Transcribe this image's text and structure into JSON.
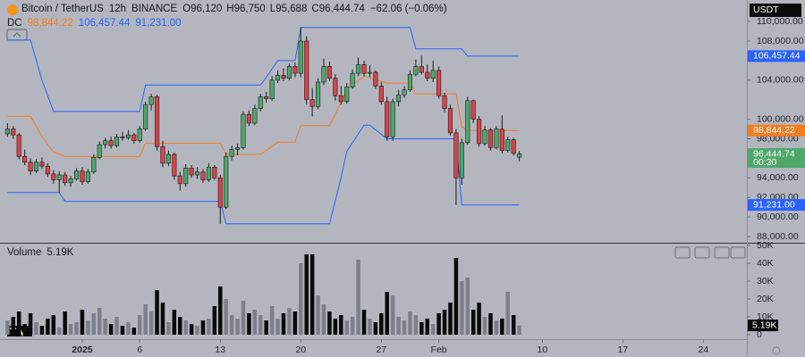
{
  "chart_data": [
    {
      "type": "candlestick",
      "symbol": "Bitcoin / TetherUS",
      "interval": "12h",
      "exchange": "BINANCE",
      "ohlc_legend": [
        {
          "key": "O",
          "value": "96,120"
        },
        {
          "key": "H",
          "value": "96,750"
        },
        {
          "key": "L",
          "value": "95,688"
        },
        {
          "key": "C",
          "value": "96,444.74"
        }
      ],
      "change": "−62.06 (−0.06%)",
      "currency": "USDT",
      "countdown": "00:30",
      "last_close_label": "96,444.74",
      "up_color": "#4fa86a",
      "down_color": "#d8434b",
      "wick_color": "#1b1b1b",
      "x": [
        -6.5,
        -6,
        -5.5,
        -5,
        -4.5,
        -4,
        -3.5,
        -3,
        -2.5,
        -2,
        -1.5,
        -1,
        -0.5,
        0,
        0.5,
        1,
        1.5,
        2,
        2.5,
        3,
        3.5,
        4,
        4.5,
        5,
        5.5,
        6,
        6.5,
        7,
        7.5,
        8,
        8.5,
        9,
        9.5,
        10,
        10.5,
        11,
        11.5,
        12,
        12.5,
        13,
        13.5,
        14,
        14.5,
        15,
        15.5,
        16,
        16.5,
        17,
        17.5,
        18,
        18.5,
        19,
        19.5,
        20,
        20.5,
        21,
        21.5,
        22,
        22.5,
        23,
        23.5,
        24,
        24.5,
        25,
        25.5,
        26,
        26.5,
        27,
        27.5,
        28,
        28.5,
        29,
        29.5,
        30,
        30.5,
        31,
        31.5,
        32,
        32.5,
        33,
        33.5,
        34,
        34.5,
        35,
        35.5,
        36,
        36.5,
        37,
        37.5,
        38
      ],
      "open": [
        98500,
        99000,
        98400,
        96200,
        95600,
        94700,
        95600,
        95200,
        94400,
        93800,
        94300,
        93500,
        93900,
        94700,
        93600,
        94600,
        96100,
        97400,
        97800,
        97300,
        98200,
        98100,
        98400,
        97800,
        99000,
        101500,
        102300,
        97200,
        95500,
        96400,
        94200,
        93400,
        95000,
        94300,
        94600,
        93800,
        95100,
        94000,
        91000,
        96200,
        96900,
        97100,
        100500,
        99600,
        101100,
        102300,
        102100,
        104000,
        104500,
        104200,
        105400,
        104700,
        108000,
        102000,
        101300,
        103800,
        105400,
        104200,
        102400,
        101800,
        103300,
        104700,
        105600,
        104700,
        104800,
        103400,
        101800,
        98200,
        101800,
        102500,
        103000,
        104600,
        105400,
        104800,
        104200,
        105000,
        102400,
        101100,
        98600,
        94000,
        97600,
        101900,
        100000,
        97500,
        98900,
        97100,
        99000,
        96800,
        97900,
        96120
      ],
      "high": [
        99600,
        99300,
        98600,
        96900,
        96000,
        95900,
        96100,
        95500,
        94800,
        94700,
        94600,
        94200,
        95000,
        95100,
        94900,
        96400,
        97700,
        98100,
        98200,
        98500,
        98700,
        98900,
        98600,
        99300,
        101800,
        102600,
        102500,
        97800,
        96800,
        96600,
        94600,
        95400,
        95300,
        95100,
        94900,
        95500,
        95300,
        94300,
        96600,
        97300,
        97500,
        100800,
        100900,
        101500,
        102600,
        102800,
        104400,
        105000,
        105200,
        105700,
        105800,
        109400,
        108500,
        103200,
        104200,
        106200,
        105900,
        104600,
        103400,
        103700,
        105100,
        106300,
        106000,
        105500,
        105000,
        103800,
        102300,
        102100,
        103000,
        103400,
        105000,
        106100,
        106500,
        105600,
        106000,
        105400,
        102700,
        101500,
        99000,
        98000,
        102300,
        102000,
        100300,
        99300,
        99100,
        99300,
        100400,
        98200,
        98100,
        96750
      ],
      "low": [
        98200,
        98000,
        95900,
        95300,
        94300,
        94500,
        94900,
        94100,
        93400,
        92500,
        93200,
        93100,
        93700,
        93300,
        93400,
        94400,
        95900,
        97000,
        97000,
        97100,
        97800,
        97900,
        97500,
        97600,
        98800,
        100900,
        96800,
        95100,
        95200,
        93800,
        92700,
        93100,
        94000,
        93900,
        93500,
        93600,
        93800,
        89300,
        90800,
        95800,
        96300,
        96900,
        99300,
        99400,
        100800,
        101700,
        101900,
        103700,
        103900,
        104000,
        104300,
        104300,
        101500,
        100300,
        101000,
        103500,
        103900,
        101900,
        101500,
        101600,
        103100,
        104400,
        104400,
        104300,
        103100,
        101500,
        97800,
        97800,
        101300,
        102200,
        102800,
        104400,
        104600,
        103900,
        103800,
        102100,
        100700,
        98300,
        91231,
        93300,
        97400,
        99600,
        97200,
        97300,
        96800,
        96900,
        96500,
        96600,
        96300,
        95688
      ],
      "close": [
        99000,
        98400,
        96200,
        95600,
        94700,
        95600,
        95200,
        94400,
        93800,
        94300,
        93500,
        93900,
        94700,
        93600,
        94600,
        96100,
        97400,
        97800,
        97300,
        98200,
        98100,
        98400,
        97800,
        99000,
        101500,
        102300,
        97200,
        95500,
        96400,
        94200,
        93400,
        95000,
        94300,
        94600,
        93800,
        95100,
        94000,
        91000,
        96200,
        96900,
        97100,
        100500,
        99600,
        101100,
        102300,
        102100,
        104000,
        104500,
        104200,
        105400,
        104700,
        108000,
        102000,
        101300,
        103800,
        105400,
        104200,
        102400,
        101800,
        103300,
        104700,
        105600,
        104700,
        104800,
        103400,
        101800,
        98200,
        101800,
        102500,
        103000,
        104600,
        105400,
        104800,
        104200,
        105000,
        102400,
        101100,
        98600,
        94000,
        97600,
        101900,
        100000,
        97500,
        98900,
        97100,
        99000,
        96800,
        97900,
        96506.8,
        96444.74
      ],
      "indicator": {
        "name": "DC",
        "series": [
          {
            "color": "#f57c20",
            "value_label": "98,844.22",
            "x": [
              -6.5,
              -4.5,
              -3.5,
              -2.5,
              -1.5,
              5,
              5.5,
              12,
              12.5,
              15.5,
              16,
              17,
              18.5,
              19,
              21.5,
              22.5,
              23,
              24.5,
              26.5,
              28.5,
              29,
              32.5,
              33,
              33.5,
              38
            ],
            "values": [
              100300,
              100300,
              98250,
              96650,
              96200,
              96200,
              97550,
              97550,
              96400,
              96400,
              96800,
              97650,
              97650,
              99350,
              99350,
              101700,
              103050,
              104400,
              103700,
              103700,
              102600,
              102600,
              99215,
              98844.22,
              98844.22
            ]
          },
          {
            "color": "#2962ff",
            "value_label": "106,457.44",
            "x": [
              -6.5,
              -4.5,
              -3.5,
              -2.5,
              5,
              5.5,
              15.5,
              16,
              17,
              18.5,
              19,
              28.5,
              29,
              33,
              33.5,
              38
            ],
            "values": [
              108100,
              108100,
              104000,
              100800,
              100800,
              103500,
              103500,
              104300,
              106000,
              106000,
              109400,
              109400,
              107200,
              107200,
              106457.44,
              106457.44
            ]
          },
          {
            "color": "#2962ff",
            "value_label": "91,231.00",
            "x": [
              -6.5,
              -2,
              -1.5,
              12,
              12.5,
              21.5,
              22.5,
              23,
              24.5,
              25,
              26.5,
              32.5,
              33,
              38
            ],
            "values": [
              92500,
              92500,
              91600,
              91600,
              89300,
              89300,
              94000,
              96700,
              99400,
              99400,
              98000,
              98000,
              91231,
              91231
            ]
          }
        ]
      },
      "xlim": [
        -7.15,
        57.78
      ],
      "xticks": [
        {
          "value": 0,
          "label": "2025"
        },
        {
          "value": 5,
          "label": "6"
        },
        {
          "value": 12,
          "label": "13"
        },
        {
          "value": 19,
          "label": "20"
        },
        {
          "value": 26,
          "label": "27"
        },
        {
          "value": 31,
          "label": "Feb"
        },
        {
          "value": 40,
          "label": "10"
        },
        {
          "value": 47,
          "label": "17"
        },
        {
          "value": 54,
          "label": "24"
        }
      ],
      "ylim": [
        87360,
        112200
      ],
      "yticks": [
        {
          "value": 110000,
          "label": "110,000.00"
        },
        {
          "value": 108000,
          "label": "108,000.00"
        },
        {
          "value": 104000,
          "label": "104,000.00"
        },
        {
          "value": 100000,
          "label": "100,000.00"
        },
        {
          "value": 98000,
          "label": "98,000.00"
        },
        {
          "value": 94000,
          "label": "94,000.00"
        },
        {
          "value": 92000,
          "label": "92,000.00"
        },
        {
          "value": 90000,
          "label": "90,000.00"
        },
        {
          "value": 88000,
          "label": "88,000.00"
        }
      ]
    },
    {
      "type": "bar",
      "title": "Volume",
      "last_value_label": "5.19K",
      "up_color": "#7e8088",
      "down_color": "#0a0a0a",
      "values": [
        8000,
        10000,
        13000,
        6000,
        12000,
        7000,
        5000,
        9000,
        11000,
        4000,
        13000,
        6000,
        7000,
        14000,
        8000,
        12000,
        15000,
        9000,
        6000,
        10000,
        5000,
        7000,
        4000,
        11000,
        17000,
        13000,
        25000,
        18000,
        7000,
        14000,
        10000,
        8000,
        6000,
        5000,
        8000,
        9000,
        16000,
        27000,
        20000,
        11000,
        9000,
        19000,
        12000,
        14000,
        11000,
        8000,
        16000,
        9000,
        12000,
        15000,
        13000,
        40000,
        45000,
        45000,
        22000,
        17000,
        13000,
        9000,
        11000,
        8000,
        10000,
        42000,
        14000,
        9000,
        7000,
        12000,
        24000,
        22000,
        10000,
        8000,
        13000,
        11000,
        7000,
        9000,
        6000,
        12000,
        14000,
        18000,
        43000,
        30000,
        32000,
        14000,
        18000,
        10000,
        12000,
        8000,
        9000,
        24000,
        11000,
        5190
      ],
      "ylim": [
        0,
        50000
      ],
      "yticks": [
        {
          "value": 50000,
          "label": "50K"
        },
        {
          "value": 40000,
          "label": "40K"
        },
        {
          "value": 30000,
          "label": "30K"
        },
        {
          "value": 20000,
          "label": "20K"
        },
        {
          "value": 10000,
          "label": "10K"
        },
        0
      ]
    }
  ]
}
